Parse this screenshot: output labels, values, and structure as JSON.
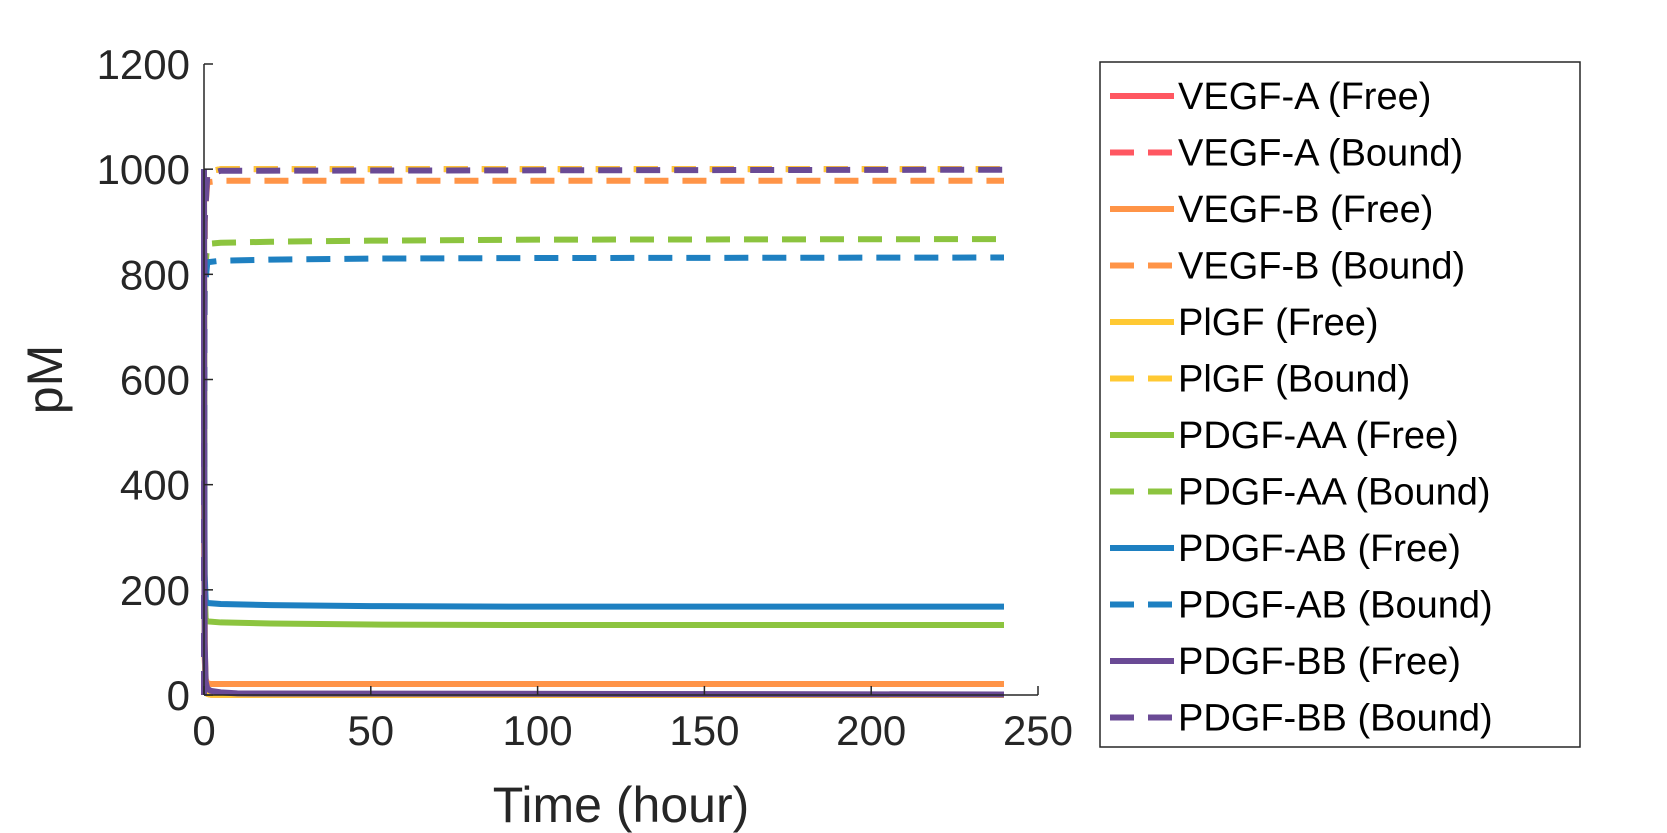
{
  "chart_data": {
    "type": "line",
    "xlabel": "Time (hour)",
    "ylabel": "pM",
    "xlim": [
      0,
      250
    ],
    "ylim": [
      0,
      1200
    ],
    "xticks": [
      "0",
      "50",
      "100",
      "150",
      "200",
      "250"
    ],
    "yticks": [
      "0",
      "200",
      "400",
      "600",
      "800",
      "1000",
      "1200"
    ],
    "grid": false,
    "legend_position": "outside-right",
    "series": [
      {
        "name": "VEGF-A (Free)",
        "color": "#FF5761",
        "dash": "solid",
        "x": [
          0,
          0.05,
          0.2,
          0.5,
          1,
          2,
          5,
          240
        ],
        "y": [
          1000,
          400,
          80,
          10,
          2,
          0.5,
          0.2,
          0.2
        ]
      },
      {
        "name": "VEGF-A (Bound)",
        "color": "#FF5761",
        "dash": "dashed",
        "x": [
          0,
          0.05,
          0.2,
          1,
          5,
          240
        ],
        "y": [
          0,
          600,
          920,
          995,
          1000,
          1000
        ]
      },
      {
        "name": "VEGF-B (Free)",
        "color": "#FF9447",
        "dash": "solid",
        "x": [
          0,
          0.05,
          0.2,
          0.5,
          1,
          2,
          5,
          240
        ],
        "y": [
          1000,
          400,
          90,
          30,
          22,
          21,
          21,
          21
        ]
      },
      {
        "name": "VEGF-B (Bound)",
        "color": "#FF9447",
        "dash": "dashed",
        "x": [
          0,
          0.05,
          0.2,
          1,
          5,
          240
        ],
        "y": [
          0,
          600,
          910,
          975,
          978,
          978
        ]
      },
      {
        "name": "PlGF (Free)",
        "color": "#FFC933",
        "dash": "solid",
        "x": [
          0,
          0.05,
          0.2,
          0.5,
          1,
          2,
          5,
          240
        ],
        "y": [
          1000,
          400,
          80,
          10,
          2,
          0.5,
          0.2,
          0.2
        ]
      },
      {
        "name": "PlGF (Bound)",
        "color": "#FFC933",
        "dash": "dashed",
        "x": [
          0,
          0.05,
          0.2,
          1,
          5,
          240
        ],
        "y": [
          0,
          600,
          920,
          995,
          1000,
          1000
        ]
      },
      {
        "name": "PDGF-AA (Free)",
        "color": "#8CC43F",
        "dash": "solid",
        "x": [
          0,
          0.05,
          0.2,
          0.5,
          1,
          5,
          20,
          50,
          100,
          240
        ],
        "y": [
          1000,
          500,
          200,
          145,
          140,
          138,
          136,
          134,
          133,
          133
        ]
      },
      {
        "name": "PDGF-AA (Bound)",
        "color": "#8CC43F",
        "dash": "dashed",
        "x": [
          0,
          0.05,
          0.2,
          1,
          5,
          20,
          50,
          100,
          240
        ],
        "y": [
          0,
          500,
          800,
          858,
          860,
          862,
          864,
          866,
          867
        ]
      },
      {
        "name": "PDGF-AB (Free)",
        "color": "#1E80C1",
        "dash": "solid",
        "x": [
          0,
          0.05,
          0.2,
          0.5,
          1,
          5,
          20,
          50,
          100,
          240
        ],
        "y": [
          1000,
          500,
          230,
          180,
          175,
          173,
          171,
          169,
          168,
          168
        ]
      },
      {
        "name": "PDGF-AB (Bound)",
        "color": "#1E80C1",
        "dash": "dashed",
        "x": [
          0,
          0.05,
          0.2,
          1,
          5,
          20,
          50,
          100,
          240
        ],
        "y": [
          0,
          500,
          770,
          823,
          826,
          828,
          830,
          831,
          832
        ]
      },
      {
        "name": "PDGF-BB (Free)",
        "color": "#6A4A95",
        "dash": "solid",
        "x": [
          0,
          0.05,
          0.2,
          0.5,
          1,
          2,
          5,
          10,
          240
        ],
        "y": [
          1000,
          450,
          100,
          25,
          12,
          8,
          5,
          3,
          1
        ]
      },
      {
        "name": "PDGF-BB (Bound)",
        "color": "#6A4A95",
        "dash": "dashed",
        "x": [
          0,
          0.05,
          0.2,
          1,
          5,
          240
        ],
        "y": [
          0,
          550,
          900,
          990,
          997,
          999
        ]
      }
    ]
  }
}
